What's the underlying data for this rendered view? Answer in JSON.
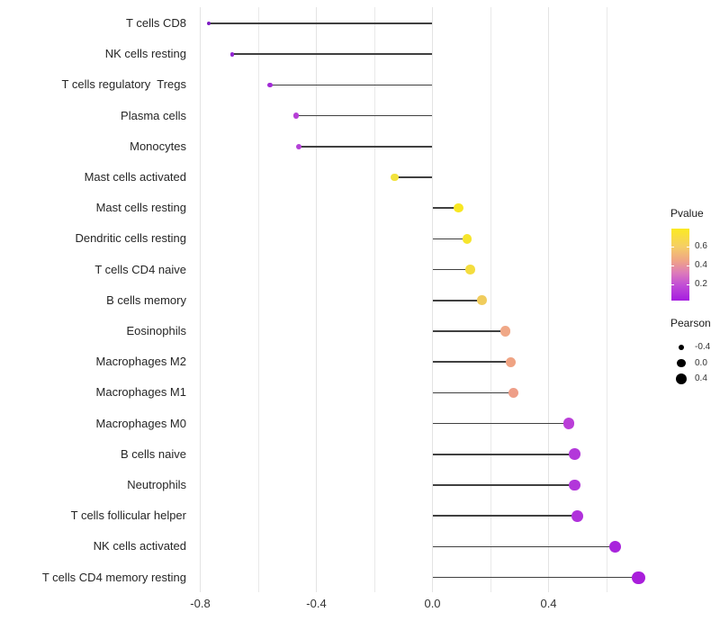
{
  "chart_data": {
    "type": "lollipop",
    "orientation": "horizontal",
    "title": "",
    "xlabel": "",
    "ylabel": "",
    "background": "#ffffff",
    "gridline_color": "#e9e9e9",
    "segment_color": "#404040",
    "xlim": [
      -0.83,
      0.73
    ],
    "x_major_ticks": [
      -0.8,
      -0.4,
      0.0,
      0.4
    ],
    "x_tick_labels": [
      "-0.8",
      "-0.4",
      "0.0",
      "0.4"
    ],
    "x_gridlines": [
      -0.8,
      -0.6,
      -0.4,
      -0.2,
      0.0,
      0.2,
      0.4,
      0.6
    ],
    "rows": [
      {
        "label": "T cells CD8",
        "pearson": -0.77,
        "pvalue_color": "#7C1CC2"
      },
      {
        "label": "NK cells resting",
        "pearson": -0.69,
        "pvalue_color": "#9326D2"
      },
      {
        "label": "T cells regulatory  Tregs",
        "pearson": -0.56,
        "pvalue_color": "#A22AD6"
      },
      {
        "label": "Plasma cells",
        "pearson": -0.47,
        "pvalue_color": "#B63ED6"
      },
      {
        "label": "Monocytes",
        "pearson": -0.46,
        "pvalue_color": "#B441D7"
      },
      {
        "label": "Mast cells activated",
        "pearson": -0.13,
        "pvalue_color": "#F2E23C"
      },
      {
        "label": "Mast cells resting",
        "pearson": 0.09,
        "pvalue_color": "#F8E722"
      },
      {
        "label": "Dendritic cells resting",
        "pearson": 0.12,
        "pvalue_color": "#F6E52C"
      },
      {
        "label": "T cells CD4 naive",
        "pearson": 0.13,
        "pvalue_color": "#F4DD3E"
      },
      {
        "label": "B cells memory",
        "pearson": 0.17,
        "pvalue_color": "#F0CC5C"
      },
      {
        "label": "Eosinophils",
        "pearson": 0.25,
        "pvalue_color": "#F0A887"
      },
      {
        "label": "Macrophages M2",
        "pearson": 0.27,
        "pvalue_color": "#EFA383"
      },
      {
        "label": "Macrophages M1",
        "pearson": 0.28,
        "pvalue_color": "#EE9E88"
      },
      {
        "label": "Macrophages M0",
        "pearson": 0.47,
        "pvalue_color": "#BA3ED8"
      },
      {
        "label": "B cells naive",
        "pearson": 0.49,
        "pvalue_color": "#B338DA"
      },
      {
        "label": "Neutrophils",
        "pearson": 0.49,
        "pvalue_color": "#B236DA"
      },
      {
        "label": "T cells follicular helper",
        "pearson": 0.5,
        "pvalue_color": "#B031DB"
      },
      {
        "label": "NK cells activated",
        "pearson": 0.63,
        "pvalue_color": "#A825DC"
      },
      {
        "label": "T cells CD4 memory resting",
        "pearson": 0.71,
        "pvalue_color": "#A91EDB"
      }
    ],
    "legends": {
      "pvalue": {
        "title": "Pvalue",
        "tick_values": [
          0.6,
          0.4,
          0.2
        ],
        "tick_labels": [
          "0.6",
          "0.4",
          "0.2"
        ],
        "scale_top_value": 0.79,
        "scale_bottom_value": 0.03,
        "gradient_stops": [
          {
            "pos": "0%",
            "color": "#FBEA22"
          },
          {
            "pos": "25%",
            "color": "#F5CE66"
          },
          {
            "pos": "45%",
            "color": "#EFA387"
          },
          {
            "pos": "62%",
            "color": "#DC79BB"
          },
          {
            "pos": "78%",
            "color": "#C24FD5"
          },
          {
            "pos": "100%",
            "color": "#A51CE0"
          }
        ]
      },
      "pearson": {
        "title": "Pearson",
        "items": [
          {
            "label": "-0.4",
            "value": -0.4
          },
          {
            "label": "0.0",
            "value": 0.0
          },
          {
            "label": "0.4",
            "value": 0.4
          }
        ],
        "dot_color": "#000000"
      }
    }
  }
}
